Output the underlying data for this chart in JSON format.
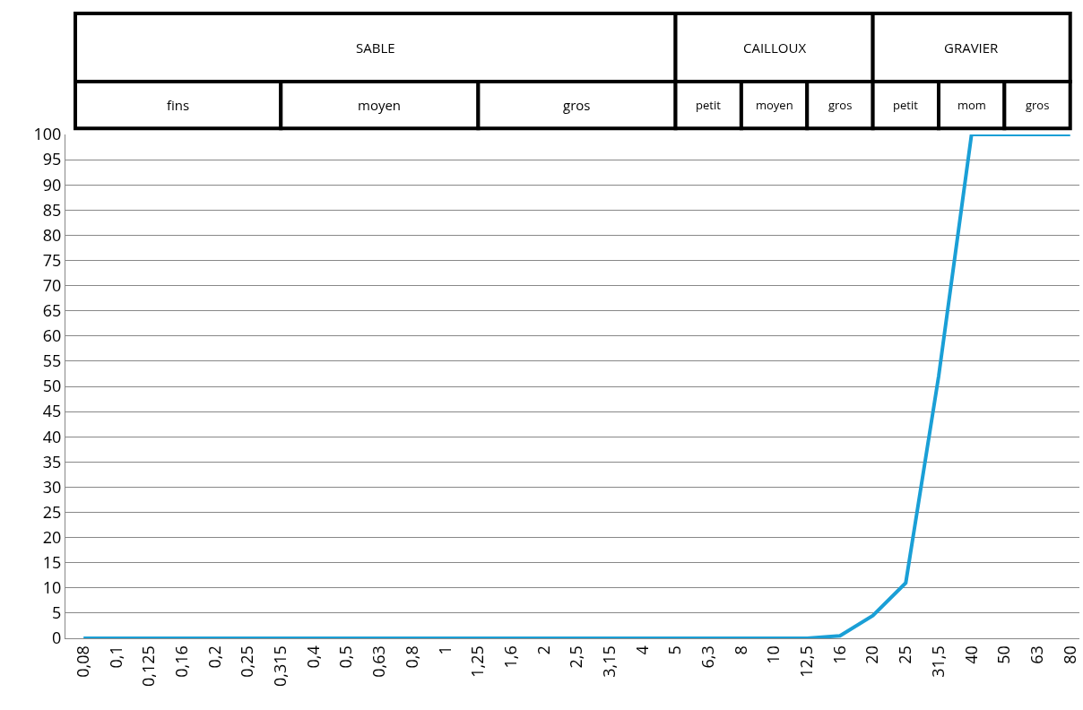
{
  "chart_data": {
    "type": "line",
    "categories": [
      "0,08",
      "0,1",
      "0,125",
      "0,16",
      "0,2",
      "0,25",
      "0,315",
      "0,4",
      "0,5",
      "0,63",
      "0,8",
      "1",
      "1,25",
      "1,6",
      "2",
      "2,5",
      "3,15",
      "4",
      "5",
      "6,3",
      "8",
      "10",
      "12,5",
      "16",
      "20",
      "25",
      "31,5",
      "40",
      "50",
      "63",
      "80"
    ],
    "series": [
      {
        "color": "#1a9fd6",
        "values": [
          0,
          0,
          0,
          0,
          0,
          0,
          0,
          0,
          0,
          0,
          0,
          0,
          0,
          0,
          0,
          0,
          0,
          0,
          0,
          0,
          0,
          0,
          0,
          0.5,
          4.5,
          11,
          52,
          100,
          100,
          100,
          100
        ]
      }
    ],
    "ylim": [
      0,
      100
    ],
    "yticks": [
      0,
      5,
      10,
      15,
      20,
      25,
      30,
      35,
      40,
      45,
      50,
      55,
      60,
      65,
      70,
      75,
      80,
      85,
      90,
      95,
      100
    ],
    "grid": "y",
    "marker": "none",
    "line_style": "solid",
    "annotations": [
      "SABLE",
      "CAILLOUX",
      "GRAVIER",
      "fins",
      "moyen",
      "gros",
      "petit",
      "moyen",
      "gros",
      "petit",
      "mom",
      "gros"
    ]
  }
}
